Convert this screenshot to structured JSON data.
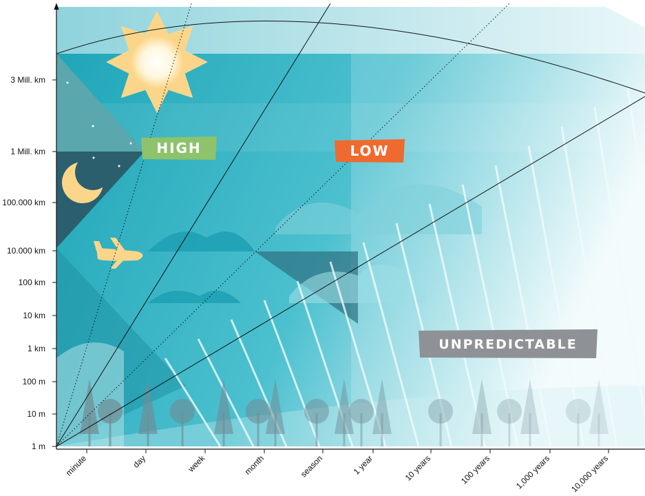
{
  "y_axis": {
    "labels": [
      "3 Mill. km",
      "1 Mill. km",
      "100.000 km",
      "10.000 km",
      "100 km",
      "10 km",
      "1 km",
      "100 m",
      "10 m",
      "1 m"
    ]
  },
  "x_axis": {
    "labels": [
      "minute",
      "day",
      "week",
      "month",
      "season",
      "1 year",
      "10 years",
      "100 years",
      "1,000 years",
      "10,000 years"
    ]
  },
  "regions": [
    {
      "label": "HIGH",
      "color": "#8cc36b"
    },
    {
      "label": "LOW",
      "color": "#ef6a2e"
    },
    {
      "label": "UNPREDICTABLE",
      "color": "#8e9296"
    }
  ]
}
